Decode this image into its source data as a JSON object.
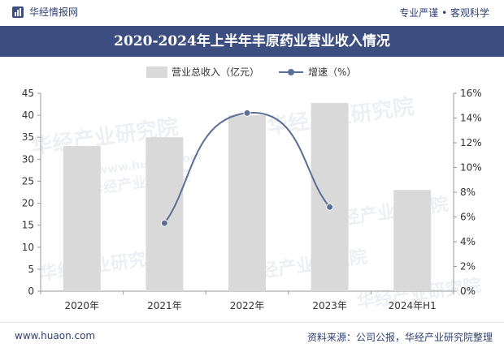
{
  "header": {
    "brand": "华经情报网",
    "tagline": "专业严谨 • 客观科学"
  },
  "title": "2020-2024年上半年丰原药业营业收入情况",
  "footer": {
    "url": "www.huaon.com",
    "source": "资料来源：公司公报，华经产业研究院整理"
  },
  "watermark": {
    "text": "华经产业研究院",
    "domain": "www.huaon.com"
  },
  "colors": {
    "bar": "#d9d9d9",
    "line": "#5b6e96",
    "title_bg": "#3c4e7f",
    "brand": "#2e3f73"
  },
  "chart_data": {
    "type": "bar+line",
    "categories": [
      "2020年",
      "2021年",
      "2022年",
      "2023年",
      "2024年H1"
    ],
    "series": [
      {
        "name": "营业总收入（亿元）",
        "type": "bar",
        "axis": "left",
        "values": [
          33.0,
          35.0,
          40.0,
          42.8,
          23.0
        ]
      },
      {
        "name": "增速（%）",
        "type": "line",
        "axis": "right",
        "values": [
          null,
          5.5,
          14.4,
          6.8,
          null
        ]
      }
    ],
    "left_axis": {
      "min": 0,
      "max": 45,
      "step": 5,
      "ticks": [
        "0",
        "5",
        "10",
        "15",
        "20",
        "25",
        "30",
        "35",
        "40",
        "45"
      ]
    },
    "right_axis": {
      "min": 0,
      "max": 16,
      "step": 2,
      "ticks": [
        "0%",
        "2%",
        "4%",
        "6%",
        "8%",
        "10%",
        "12%",
        "14%",
        "16%"
      ]
    },
    "legend": {
      "position": "top-center",
      "items": [
        "营业总收入（亿元）",
        "增速（%）"
      ]
    },
    "grid": false
  }
}
